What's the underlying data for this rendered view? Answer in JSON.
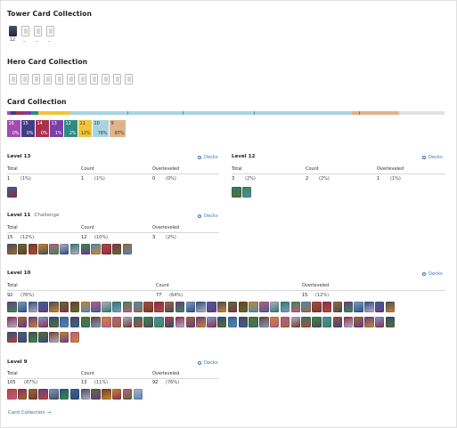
{
  "tower": {
    "title": "Tower Card Collection",
    "level": "12",
    "dashes": [
      "–",
      "–",
      "–"
    ]
  },
  "hero": {
    "title": "Hero Card Collection"
  },
  "collection": {
    "title": "Card Collection",
    "levels": [
      {
        "level": "16",
        "pct": "0%",
        "color": "#a44ab3"
      },
      {
        "level": "15",
        "pct": "0%",
        "color": "#3f3d86"
      },
      {
        "level": "14",
        "pct": "0%",
        "color": "#ab2f4f"
      },
      {
        "level": "13",
        "pct": "1%",
        "color": "#7a3fa8"
      },
      {
        "level": "12",
        "pct": "2%",
        "color": "#2d8b83"
      },
      {
        "level": "11",
        "pct": "12%",
        "color": "#f2c43a"
      },
      {
        "level": "10",
        "pct": "76%",
        "color": "#a8d4e2"
      },
      {
        "level": "9",
        "pct": "87%",
        "color": "#e0b38b"
      }
    ]
  },
  "labels": {
    "total": "Total",
    "count": "Count",
    "overleveled": "Overleveled",
    "decks": "Decks",
    "challenge": "Challenge"
  },
  "sections": {
    "l13": {
      "title": "Level 13",
      "total": "1",
      "total_pct": "(1%)",
      "count": "1",
      "count_pct": "(1%)",
      "over": "0",
      "over_pct": "(0%)"
    },
    "l12": {
      "title": "Level 12",
      "total": "3",
      "total_pct": "(2%)",
      "count": "2",
      "count_pct": "(2%)",
      "over": "1",
      "over_pct": "(1%)"
    },
    "l11": {
      "title": "Level 11",
      "total": "15",
      "total_pct": "(12%)",
      "count": "12",
      "count_pct": "(10%)",
      "over": "3",
      "over_pct": "(2%)"
    },
    "l10": {
      "title": "Level 10",
      "total": "92",
      "total_pct": "(76%)",
      "count": "77",
      "count_pct": "(64%)",
      "over": "15",
      "over_pct": "(12%)"
    },
    "l9": {
      "title": "Level 9",
      "total": "105",
      "total_pct": "(87%)",
      "count": "13",
      "count_pct": "(11%)",
      "over": "92",
      "over_pct": "(76%)"
    }
  },
  "footer": {
    "link": "Card Collection →"
  },
  "card_palette": [
    "#3f5f8f",
    "#6a3a8a",
    "#b04a3a",
    "#2f7a6a",
    "#c6892e",
    "#4a4a5a",
    "#7d9ec8",
    "#8a2e4e",
    "#3b8b4b",
    "#c05a8a",
    "#5a6e2e",
    "#2e4e7e",
    "#9a6a3a",
    "#4e8ab8",
    "#b8b0c8",
    "#6e3e2e"
  ]
}
